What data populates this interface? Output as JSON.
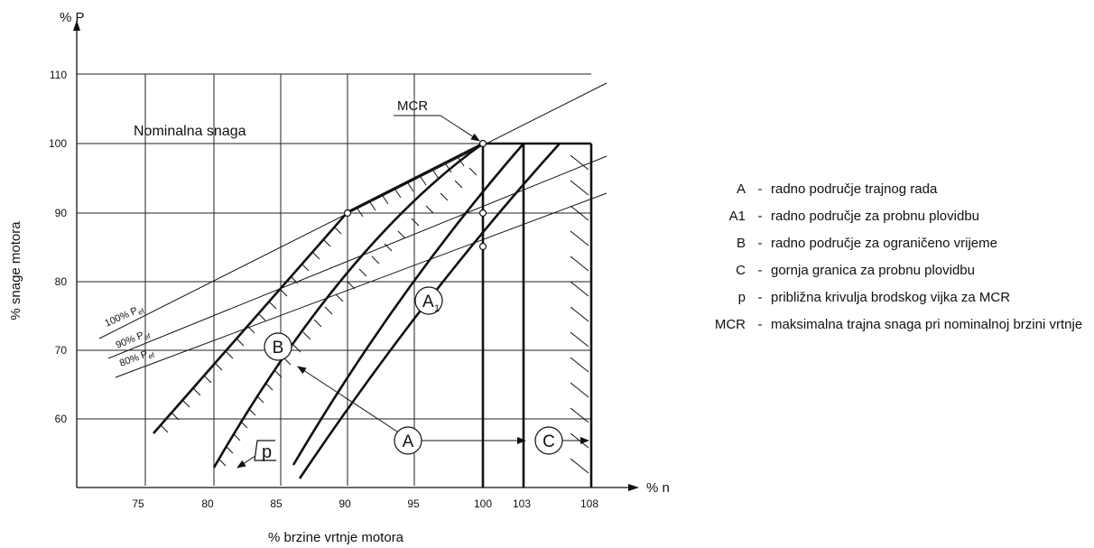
{
  "diagram": {
    "y_axis_unit": "% P",
    "x_axis_unit": "% n",
    "y_axis_label": "% snage motora",
    "x_axis_label": "% brzine vrtnje motora",
    "x_ticks": [
      "75",
      "80",
      "85",
      "90",
      "95",
      "100",
      "103",
      "108"
    ],
    "y_ticks": [
      "60",
      "70",
      "80",
      "90",
      "100",
      "110"
    ],
    "annotations": {
      "nominal_power": "Nominalna snaga",
      "mcr": "MCR",
      "propeller_100": "100% P",
      "propeller_90": "90% P",
      "propeller_80": "80% P",
      "propeller_sub": "ef",
      "region_a1": "A",
      "region_a1_sub": "1",
      "region_b": "B",
      "region_a": "A",
      "region_c": "C",
      "curve_p": "p"
    }
  },
  "legend": {
    "items": [
      {
        "key": "A",
        "text": "radno područje trajnog rada"
      },
      {
        "key": "A1",
        "text": "radno područje za probnu plovidbu"
      },
      {
        "key": "B",
        "text": "radno područje za ograničeno vrijeme"
      },
      {
        "key": "C",
        "text": "gornja granica za probnu plovidbu"
      },
      {
        "key": "p",
        "text": "približna krivulja brodskog vijka za MCR"
      },
      {
        "key": "MCR",
        "text": "maksimalna trajna snaga pri nominalnoj brzini vrtnje"
      }
    ]
  }
}
